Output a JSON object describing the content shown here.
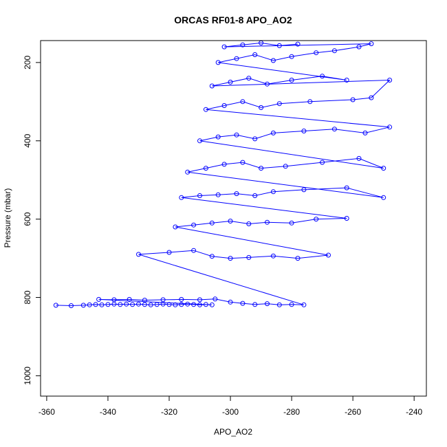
{
  "chart_data": {
    "type": "scatter",
    "title": "ORCAS RF01-8 APO_AO2",
    "xlabel": "APO_AO2",
    "ylabel": "Pressure (mbar)",
    "xlim": [
      -362,
      -236
    ],
    "ylim": [
      1052,
      144
    ],
    "y_reversed": true,
    "xticks": [
      -360,
      -340,
      -320,
      -300,
      -280,
      -260,
      -240
    ],
    "yticks": [
      200,
      400,
      600,
      800,
      1000
    ],
    "grid": false,
    "series_color": "#0000ff",
    "marker": "open-circle",
    "connect_points": true,
    "series": [
      {
        "points": [
          [
            -357,
            820
          ],
          [
            -352,
            821
          ],
          [
            -348,
            820
          ],
          [
            -346,
            819
          ],
          [
            -344,
            818
          ],
          [
            -342,
            819
          ],
          [
            -340,
            818
          ],
          [
            -338,
            817
          ],
          [
            -336,
            818
          ],
          [
            -334,
            817
          ],
          [
            -332,
            818
          ],
          [
            -330,
            817
          ],
          [
            -328,
            818
          ],
          [
            -326,
            819
          ],
          [
            -324,
            818
          ],
          [
            -322,
            817
          ],
          [
            -320,
            818
          ],
          [
            -318,
            819
          ],
          [
            -316,
            818
          ],
          [
            -314,
            817
          ],
          [
            -312,
            818
          ],
          [
            -310,
            819
          ],
          [
            -308,
            818
          ],
          [
            -306,
            819
          ],
          [
            -343,
            805
          ],
          [
            -338,
            806
          ],
          [
            -333,
            805
          ],
          [
            -328,
            807
          ],
          [
            -322,
            806
          ],
          [
            -316,
            805
          ],
          [
            -310,
            806
          ],
          [
            -305,
            804
          ],
          [
            -300,
            812
          ],
          [
            -296,
            815
          ],
          [
            -292,
            818
          ],
          [
            -288,
            816
          ],
          [
            -284,
            819
          ],
          [
            -280,
            818
          ],
          [
            -276,
            819
          ],
          [
            -330,
            690
          ],
          [
            -320,
            685
          ],
          [
            -312,
            680
          ],
          [
            -306,
            695
          ],
          [
            -300,
            700
          ],
          [
            -294,
            698
          ],
          [
            -286,
            694
          ],
          [
            -278,
            700
          ],
          [
            -268,
            692
          ],
          [
            -318,
            620
          ],
          [
            -312,
            615
          ],
          [
            -306,
            610
          ],
          [
            -300,
            605
          ],
          [
            -294,
            612
          ],
          [
            -288,
            608
          ],
          [
            -280,
            610
          ],
          [
            -272,
            600
          ],
          [
            -262,
            598
          ],
          [
            -316,
            545
          ],
          [
            -310,
            540
          ],
          [
            -304,
            538
          ],
          [
            -298,
            535
          ],
          [
            -292,
            540
          ],
          [
            -286,
            530
          ],
          [
            -276,
            525
          ],
          [
            -262,
            520
          ],
          [
            -250,
            545
          ],
          [
            -314,
            480
          ],
          [
            -308,
            470
          ],
          [
            -302,
            460
          ],
          [
            -296,
            455
          ],
          [
            -290,
            470
          ],
          [
            -282,
            465
          ],
          [
            -270,
            455
          ],
          [
            -258,
            445
          ],
          [
            -250,
            470
          ],
          [
            -310,
            400
          ],
          [
            -304,
            390
          ],
          [
            -298,
            385
          ],
          [
            -292,
            395
          ],
          [
            -286,
            380
          ],
          [
            -276,
            375
          ],
          [
            -266,
            370
          ],
          [
            -256,
            380
          ],
          [
            -248,
            365
          ],
          [
            -308,
            320
          ],
          [
            -302,
            310
          ],
          [
            -296,
            300
          ],
          [
            -290,
            315
          ],
          [
            -284,
            305
          ],
          [
            -274,
            300
          ],
          [
            -260,
            295
          ],
          [
            -254,
            290
          ],
          [
            -248,
            245
          ],
          [
            -306,
            260
          ],
          [
            -300,
            250
          ],
          [
            -294,
            240
          ],
          [
            -288,
            255
          ],
          [
            -280,
            245
          ],
          [
            -270,
            235
          ],
          [
            -262,
            245
          ],
          [
            -304,
            200
          ],
          [
            -298,
            190
          ],
          [
            -292,
            180
          ],
          [
            -286,
            195
          ],
          [
            -280,
            185
          ],
          [
            -272,
            175
          ],
          [
            -266,
            170
          ],
          [
            -258,
            160
          ],
          [
            -254,
            152
          ],
          [
            -302,
            160
          ],
          [
            -296,
            155
          ],
          [
            -290,
            150
          ],
          [
            -284,
            157
          ],
          [
            -278,
            153
          ]
        ]
      }
    ]
  }
}
